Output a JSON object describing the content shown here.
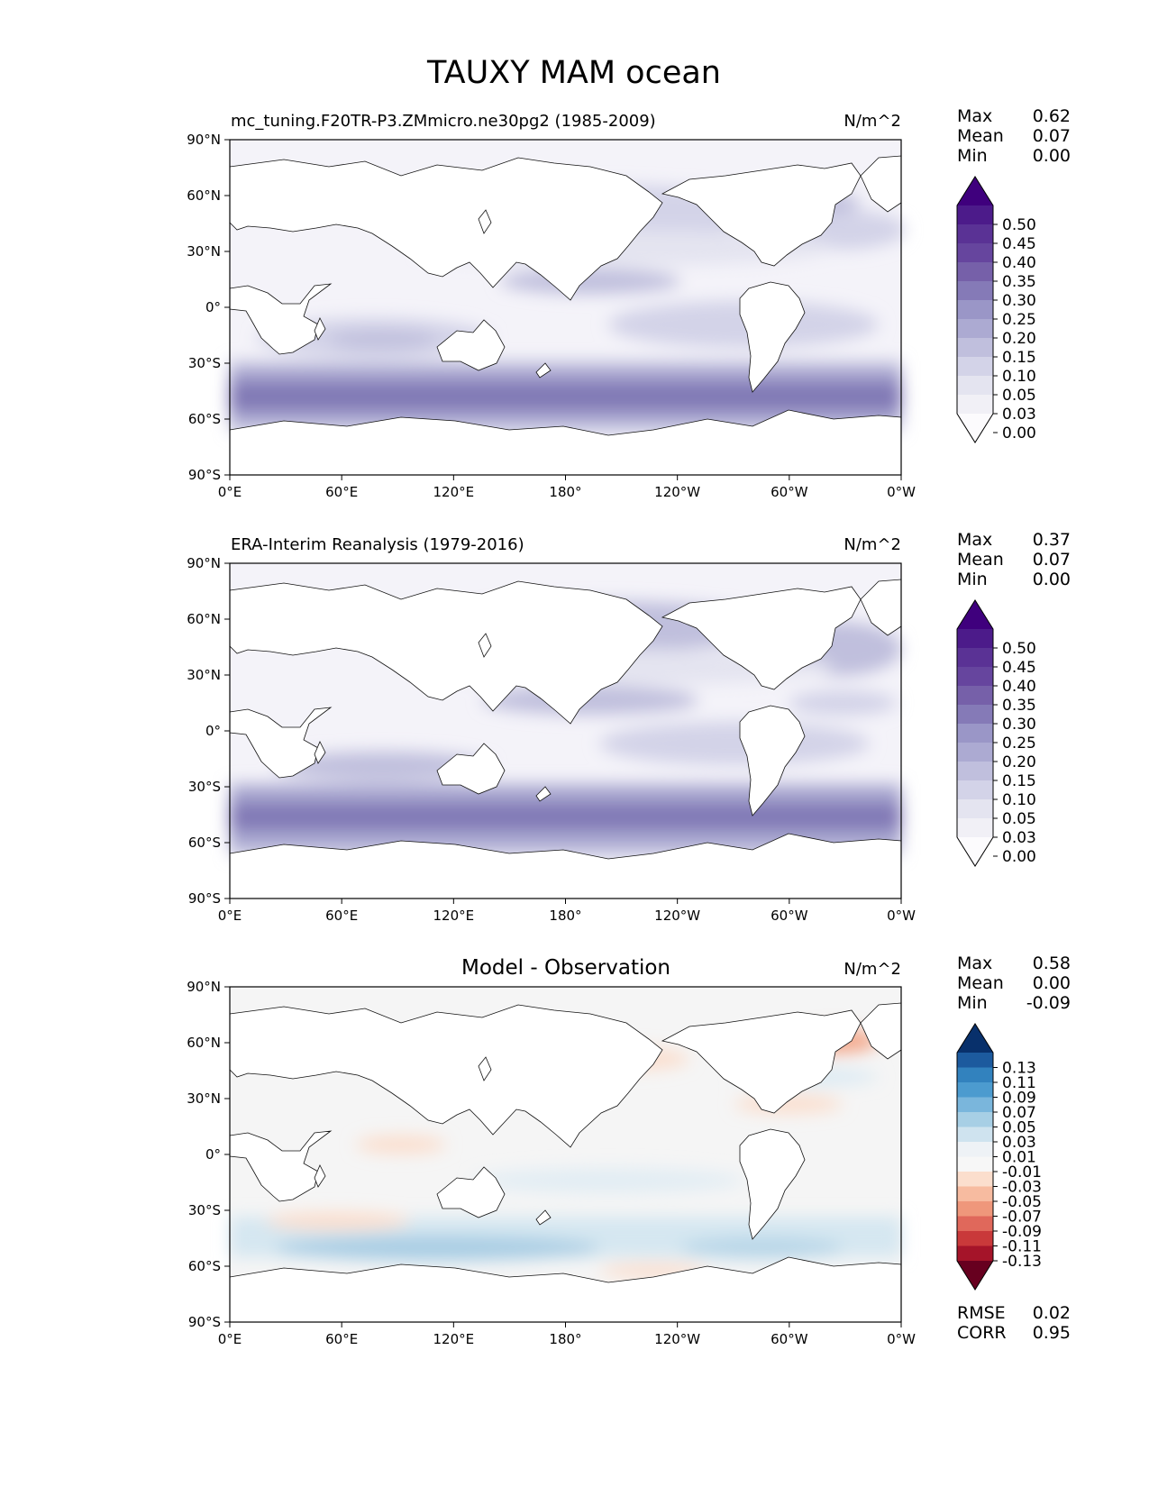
{
  "figure_title": "TAUXY MAM ocean",
  "lat_ticks": [
    "90°N",
    "60°N",
    "30°N",
    "0°",
    "30°S",
    "60°S",
    "90°S"
  ],
  "lon_ticks": [
    "0°E",
    "60°E",
    "120°E",
    "180°",
    "120°W",
    "60°W",
    "0°W"
  ],
  "chart_data": [
    {
      "type": "heatmap",
      "panel": "test",
      "title": "mc_tuning.F20TR-P3.ZMmicro.ne30pg2 (1985-2009)",
      "units": "N/m^2",
      "stats": [
        {
          "label": "Max",
          "value": "0.62"
        },
        {
          "label": "Mean",
          "value": "0.07"
        },
        {
          "label": "Min",
          "value": "0.00"
        }
      ],
      "colorbar": {
        "levels": [
          "0.50",
          "0.45",
          "0.40",
          "0.35",
          "0.30",
          "0.25",
          "0.20",
          "0.15",
          "0.10",
          "0.05",
          "0.03",
          "0.00"
        ],
        "colors": [
          "#3f007d",
          "#4c1b8a",
          "#5a3295",
          "#66459e",
          "#7660a9",
          "#857ab7",
          "#9a96c7",
          "#acaad2",
          "#c0bfdd",
          "#d3d3e8",
          "#e4e4f0",
          "#f1f0f6",
          "#fcfbfd"
        ]
      }
    },
    {
      "type": "heatmap",
      "panel": "reference",
      "title": "ERA-Interim Reanalysis (1979-2016)",
      "units": "N/m^2",
      "stats": [
        {
          "label": "Max",
          "value": "0.37"
        },
        {
          "label": "Mean",
          "value": "0.07"
        },
        {
          "label": "Min",
          "value": "0.00"
        }
      ],
      "colorbar": {
        "levels": [
          "0.50",
          "0.45",
          "0.40",
          "0.35",
          "0.30",
          "0.25",
          "0.20",
          "0.15",
          "0.10",
          "0.05",
          "0.03",
          "0.00"
        ],
        "colors": [
          "#3f007d",
          "#4c1b8a",
          "#5a3295",
          "#66459e",
          "#7660a9",
          "#857ab7",
          "#9a96c7",
          "#acaad2",
          "#c0bfdd",
          "#d3d3e8",
          "#e4e4f0",
          "#f1f0f6",
          "#fcfbfd"
        ]
      }
    },
    {
      "type": "heatmap",
      "panel": "difference",
      "title": "Model - Observation",
      "units": "N/m^2",
      "stats": [
        {
          "label": "Max",
          "value": "0.58"
        },
        {
          "label": "Mean",
          "value": "0.00"
        },
        {
          "label": "Min",
          "value": "-0.09"
        }
      ],
      "extra_stats": [
        {
          "label": "RMSE",
          "value": "0.02"
        },
        {
          "label": "CORR",
          "value": "0.95"
        }
      ],
      "colorbar": {
        "levels": [
          "0.13",
          "0.11",
          "0.09",
          "0.07",
          "0.05",
          "0.03",
          "0.01",
          "-0.01",
          "-0.03",
          "-0.05",
          "-0.07",
          "-0.09",
          "-0.11",
          "-0.13"
        ],
        "colors": [
          "#08306b",
          "#1c5a9e",
          "#3282be",
          "#4c9bcf",
          "#7ab6dc",
          "#a7cfe5",
          "#cfe3ef",
          "#eef2f6",
          "#f7f7f7",
          "#fbdecd",
          "#f7bba0",
          "#ef977b",
          "#e0685b",
          "#c9393a",
          "#a51429",
          "#67001f"
        ]
      }
    }
  ]
}
